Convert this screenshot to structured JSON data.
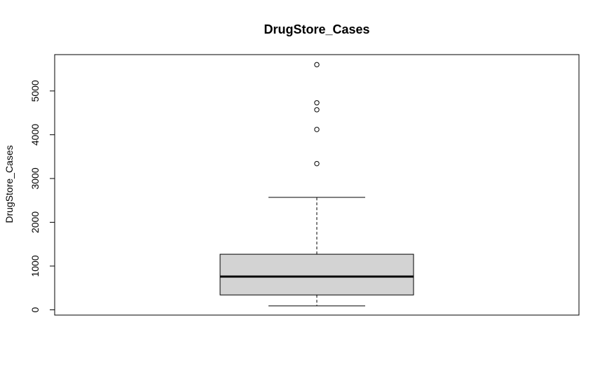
{
  "chart_data": {
    "type": "boxplot",
    "title": "DrugStore_Cases",
    "xlabel": "",
    "ylabel": "DrugStore_Cases",
    "ylim": [
      -120,
      5830
    ],
    "yticks": [
      0,
      1000,
      2000,
      3000,
      4000,
      5000
    ],
    "ytick_labels": [
      "0",
      "1000",
      "2000",
      "3000",
      "4000",
      "5000"
    ],
    "grid": false,
    "series": [
      {
        "stats": {
          "whisker_low": 90,
          "q1": 340,
          "median": 760,
          "q3": 1270,
          "whisker_high": 2570
        },
        "outliers": [
          3340,
          4120,
          4570,
          4730,
          5600
        ],
        "box_color": "#d3d3d3",
        "line_color": "#000000"
      }
    ]
  }
}
